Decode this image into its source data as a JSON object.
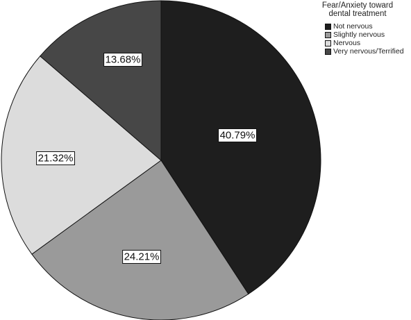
{
  "chart_data": {
    "type": "pie",
    "legend_title": "Fear/Anxiety toward dental treatment",
    "legend_title_lines": [
      "Fear/Anxiety toward",
      "dental treatment"
    ],
    "legend_position": "top-right",
    "categories": [
      "Not nervous",
      "Slightly nervous",
      "Nervous",
      "Very nervous/Terrified"
    ],
    "values": [
      40.79,
      24.21,
      21.32,
      13.68
    ],
    "value_labels": [
      "40.79%",
      "24.21%",
      "21.32%",
      "13.68%"
    ],
    "colors": [
      "#1e1e1e",
      "#9a9a9a",
      "#dcdcdc",
      "#474747"
    ],
    "start_angle": "12 o'clock",
    "direction": "clockwise"
  }
}
